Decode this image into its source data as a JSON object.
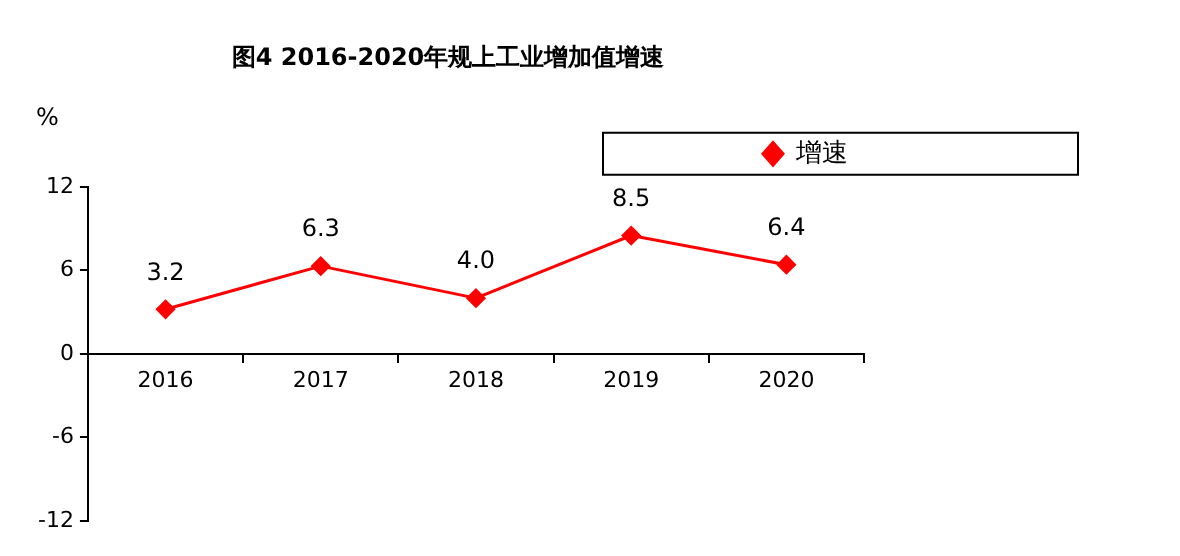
{
  "chart_data": {
    "type": "line",
    "title": "图4 2016-2020年规上工业增加值增速",
    "ylabel": "%",
    "categories": [
      "2016",
      "2017",
      "2018",
      "2019",
      "2020"
    ],
    "series": [
      {
        "name": "增速",
        "color": "#ff0000",
        "values": [
          3.2,
          6.3,
          4.0,
          8.5,
          6.4
        ]
      }
    ],
    "ylim": [
      -12,
      12
    ],
    "yticks": [
      -12,
      -6,
      0,
      6,
      12
    ],
    "grid": false,
    "legend": "top right",
    "marker": "diamond",
    "line_style": "solid",
    "value_labels": [
      "3.2",
      "6.3",
      "4.0",
      "8.5",
      "6.4"
    ]
  }
}
